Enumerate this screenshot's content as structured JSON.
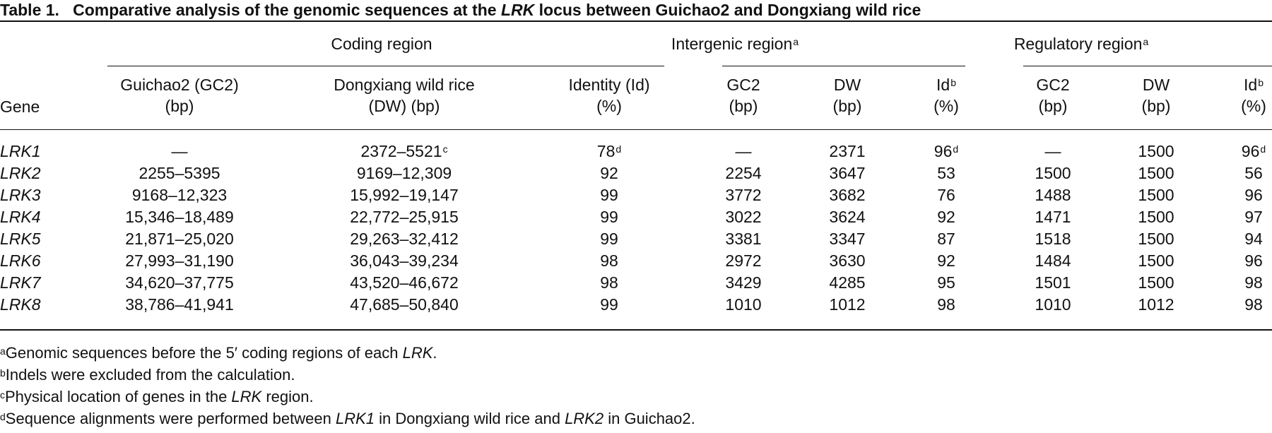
{
  "caption": {
    "label": "Table 1.",
    "text_before": "Comparative analysis of the genomic sequences at the",
    "italic_word": "LRK",
    "text_after": "locus between Guichao2 and Dongxiang wild rice"
  },
  "groups": {
    "coding": "Coding region",
    "intergenic": "Intergenic region",
    "intergenic_sup": "a",
    "regulatory": "Regulatory region",
    "regulatory_sup": "a"
  },
  "headers": {
    "gene": "Gene",
    "gc2_line1": "Guichao2 (GC2)",
    "gc2_line2": "(bp)",
    "dw_line1": "Dongxiang wild rice",
    "dw_line2": "(DW) (bp)",
    "identity_line1": "Identity (Id)",
    "identity_line2": "(%)",
    "ig_gc2_line1": "GC2",
    "ig_gc2_line2": "(bp)",
    "ig_dw_line1": "DW",
    "ig_dw_line2": "(bp)",
    "ig_id_line1": "Id",
    "ig_id_sup": "b",
    "ig_id_line2": "(%)",
    "rg_gc2_line1": "GC2",
    "rg_gc2_line2": "(bp)",
    "rg_dw_line1": "DW",
    "rg_dw_line2": "(bp)",
    "rg_id_line1": "Id",
    "rg_id_sup": "b",
    "rg_id_line2": "(%)"
  },
  "rows": [
    {
      "gene": "LRK1",
      "gc2": "—",
      "dw": "2372–5521",
      "dw_sup": "c",
      "id": "78",
      "id_sup": "d",
      "ig_gc2": "—",
      "ig_dw": "2371",
      "ig_id": "96",
      "ig_id_sup": "d",
      "rg_gc2": "—",
      "rg_dw": "1500",
      "rg_id": "96",
      "rg_id_sup": "d"
    },
    {
      "gene": "LRK2",
      "gc2": "2255–5395",
      "dw": "9169–12,309",
      "dw_sup": "",
      "id": "92",
      "id_sup": "",
      "ig_gc2": "2254",
      "ig_dw": "3647",
      "ig_id": "53",
      "ig_id_sup": "",
      "rg_gc2": "1500",
      "rg_dw": "1500",
      "rg_id": "56",
      "rg_id_sup": ""
    },
    {
      "gene": "LRK3",
      "gc2": "9168–12,323",
      "dw": "15,992–19,147",
      "dw_sup": "",
      "id": "99",
      "id_sup": "",
      "ig_gc2": "3772",
      "ig_dw": "3682",
      "ig_id": "76",
      "ig_id_sup": "",
      "rg_gc2": "1488",
      "rg_dw": "1500",
      "rg_id": "96",
      "rg_id_sup": ""
    },
    {
      "gene": "LRK4",
      "gc2": "15,346–18,489",
      "dw": "22,772–25,915",
      "dw_sup": "",
      "id": "99",
      "id_sup": "",
      "ig_gc2": "3022",
      "ig_dw": "3624",
      "ig_id": "92",
      "ig_id_sup": "",
      "rg_gc2": "1471",
      "rg_dw": "1500",
      "rg_id": "97",
      "rg_id_sup": ""
    },
    {
      "gene": "LRK5",
      "gc2": "21,871–25,020",
      "dw": "29,263–32,412",
      "dw_sup": "",
      "id": "99",
      "id_sup": "",
      "ig_gc2": "3381",
      "ig_dw": "3347",
      "ig_id": "87",
      "ig_id_sup": "",
      "rg_gc2": "1518",
      "rg_dw": "1500",
      "rg_id": "94",
      "rg_id_sup": ""
    },
    {
      "gene": "LRK6",
      "gc2": "27,993–31,190",
      "dw": "36,043–39,234",
      "dw_sup": "",
      "id": "98",
      "id_sup": "",
      "ig_gc2": "2972",
      "ig_dw": "3630",
      "ig_id": "92",
      "ig_id_sup": "",
      "rg_gc2": "1484",
      "rg_dw": "1500",
      "rg_id": "96",
      "rg_id_sup": ""
    },
    {
      "gene": "LRK7",
      "gc2": "34,620–37,775",
      "dw": "43,520–46,672",
      "dw_sup": "",
      "id": "98",
      "id_sup": "",
      "ig_gc2": "3429",
      "ig_dw": "4285",
      "ig_id": "95",
      "ig_id_sup": "",
      "rg_gc2": "1501",
      "rg_dw": "1500",
      "rg_id": "98",
      "rg_id_sup": ""
    },
    {
      "gene": "LRK8",
      "gc2": "38,786–41,941",
      "dw": "47,685–50,840",
      "dw_sup": "",
      "id": "99",
      "id_sup": "",
      "ig_gc2": "1010",
      "ig_dw": "1012",
      "ig_id": "98",
      "ig_id_sup": "",
      "rg_gc2": "1010",
      "rg_dw": "1012",
      "rg_id": "98",
      "rg_id_sup": ""
    }
  ],
  "footnotes": [
    {
      "mark": "a",
      "segments": [
        {
          "t": "Genomic sequences before the 5′ coding regions of each ",
          "i": false
        },
        {
          "t": "LRK",
          "i": true
        },
        {
          "t": ".",
          "i": false
        }
      ]
    },
    {
      "mark": "b",
      "segments": [
        {
          "t": "Indels were excluded from the calculation.",
          "i": false
        }
      ]
    },
    {
      "mark": "c",
      "segments": [
        {
          "t": "Physical location of genes in the ",
          "i": false
        },
        {
          "t": "LRK",
          "i": true
        },
        {
          "t": " region.",
          "i": false
        }
      ]
    },
    {
      "mark": "d",
      "segments": [
        {
          "t": "Sequence alignments were performed between ",
          "i": false
        },
        {
          "t": "LRK1",
          "i": true
        },
        {
          "t": " in Dongxiang wild rice and ",
          "i": false
        },
        {
          "t": "LRK2",
          "i": true
        },
        {
          "t": " in Guichao2.",
          "i": false
        }
      ]
    }
  ]
}
